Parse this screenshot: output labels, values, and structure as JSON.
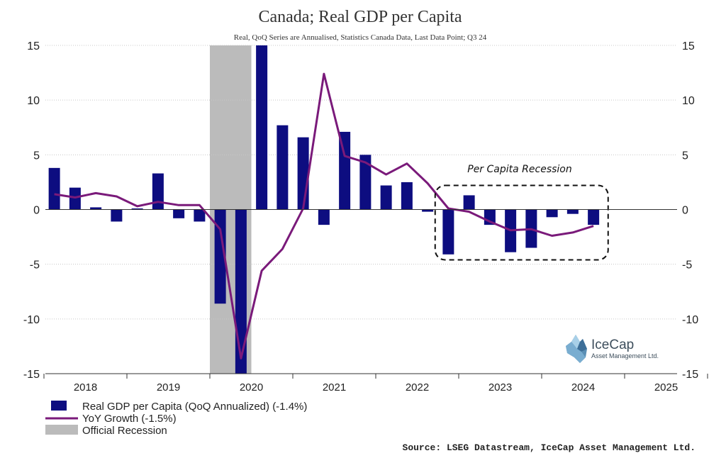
{
  "chart_data": {
    "type": "bar",
    "title": "Canada; Real GDP per Capita",
    "subtitle": "Real, QoQ Series are Annualised, Statistics Canada Data, Last Data Point; Q3 24",
    "source": "Source: LSEG Datastream, IceCap Asset Management Ltd.",
    "annotation": "Per Capita Recession",
    "ylim": [
      -15,
      15
    ],
    "yticks": [
      15,
      10,
      5,
      0,
      -5,
      -10,
      -15
    ],
    "xticks": [
      2018,
      2019,
      2020,
      2021,
      2022,
      2023,
      2024,
      2025
    ],
    "x_start": 2018,
    "quarters": [
      "Q1 18",
      "Q2 18",
      "Q3 18",
      "Q4 18",
      "Q1 19",
      "Q2 19",
      "Q3 19",
      "Q4 19",
      "Q1 20",
      "Q2 20",
      "Q3 20",
      "Q4 20",
      "Q1 21",
      "Q2 21",
      "Q3 21",
      "Q4 21",
      "Q1 22",
      "Q2 22",
      "Q3 22",
      "Q4 22",
      "Q1 23",
      "Q2 23",
      "Q3 23",
      "Q4 23",
      "Q1 24",
      "Q2 24",
      "Q3 24"
    ],
    "series": [
      {
        "name": "Real GDP per Capita  (QoQ Annualized)  (-1.4%)",
        "kind": "bar",
        "color": "#0d0d80",
        "values": [
          3.8,
          2.0,
          0.2,
          -1.1,
          0.1,
          3.3,
          -0.8,
          -1.1,
          -8.6,
          -15.0,
          15.0,
          7.7,
          6.6,
          -1.4,
          7.1,
          5.0,
          2.2,
          2.5,
          -0.2,
          -4.1,
          1.3,
          -1.4,
          -3.9,
          -3.5,
          -0.7,
          -0.4,
          -1.4
        ]
      },
      {
        "name": "YoY Growth (-1.5%)",
        "kind": "line",
        "color": "#7a1a7a",
        "values": [
          1.4,
          1.1,
          1.5,
          1.2,
          0.3,
          0.7,
          0.4,
          0.4,
          -1.8,
          -13.6,
          -5.6,
          -3.6,
          0.1,
          12.4,
          4.9,
          4.3,
          3.2,
          4.2,
          2.4,
          0.1,
          -0.2,
          -1.1,
          -1.9,
          -1.8,
          -2.4,
          -2.1,
          -1.5
        ]
      }
    ],
    "shaded": {
      "name": "Official Recession",
      "color": "#bbbbbb",
      "from": "Q1 20",
      "to": "Q2 20"
    },
    "recession_box": {
      "from": "Q4 22",
      "to": "Q3 24",
      "ymin": -4.6,
      "ymax": 2.2
    },
    "legend_position": "bottom-left"
  },
  "logo": {
    "name": "IceCap",
    "tagline": "Asset Management Ltd.",
    "icon": "iceberg-icon"
  }
}
